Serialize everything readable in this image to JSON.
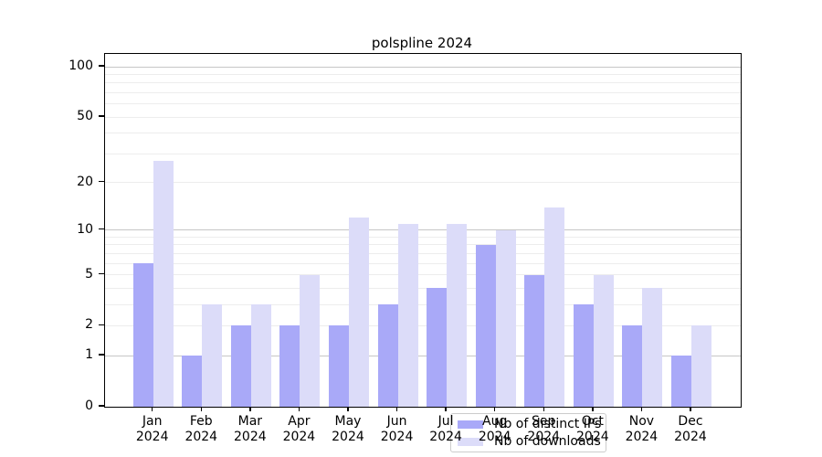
{
  "title": "polspline 2024",
  "colors": {
    "ips_bar": "#a9a9f8",
    "downloads_bar": "#dcdcf9",
    "grid_minor": "#ededed",
    "grid_major": "#c6c6c6",
    "axis": "#000000",
    "background": "#ffffff"
  },
  "legend": {
    "items": [
      {
        "label": "Nb of distinct IPs",
        "color_key": "ips_bar"
      },
      {
        "label": "Nb of downloads",
        "color_key": "downloads_bar"
      }
    ]
  },
  "y_axis": {
    "scale": "log1p",
    "tick_values": [
      0,
      1,
      2,
      5,
      10,
      20,
      50,
      100
    ],
    "tick_labels": [
      "0",
      "1",
      "2",
      "5",
      "10",
      "20",
      "50",
      "100"
    ],
    "major_gridlines": [
      1,
      10,
      100
    ],
    "minor_gridlines": [
      2,
      3,
      4,
      5,
      6,
      7,
      8,
      9,
      20,
      30,
      40,
      50,
      60,
      70,
      80,
      90
    ]
  },
  "x_axis": {
    "labels": [
      [
        "Jan",
        "2024"
      ],
      [
        "Feb",
        "2024"
      ],
      [
        "Mar",
        "2024"
      ],
      [
        "Apr",
        "2024"
      ],
      [
        "May",
        "2024"
      ],
      [
        "Jun",
        "2024"
      ],
      [
        "Jul",
        "2024"
      ],
      [
        "Aug",
        "2024"
      ],
      [
        "Sep",
        "2024"
      ],
      [
        "Oct",
        "2024"
      ],
      [
        "Nov",
        "2024"
      ],
      [
        "Dec",
        "2024"
      ]
    ]
  },
  "chart_data": {
    "type": "bar",
    "title": "polspline 2024",
    "categories": [
      "Jan 2024",
      "Feb 2024",
      "Mar 2024",
      "Apr 2024",
      "May 2024",
      "Jun 2024",
      "Jul 2024",
      "Aug 2024",
      "Sep 2024",
      "Oct 2024",
      "Nov 2024",
      "Dec 2024"
    ],
    "series": [
      {
        "name": "Nb of distinct IPs",
        "color_key": "ips_bar",
        "values": [
          6,
          1,
          2,
          2,
          2,
          3,
          4,
          8,
          5,
          3,
          2,
          1
        ]
      },
      {
        "name": "Nb of downloads",
        "color_key": "downloads_bar",
        "values": [
          27,
          3,
          3,
          5,
          12,
          11,
          11,
          10,
          14,
          5,
          4,
          2
        ]
      }
    ],
    "xlabel": "",
    "ylabel": "",
    "ylim": [
      0,
      100
    ],
    "yscale": "log1p",
    "yticks": [
      0,
      1,
      2,
      5,
      10,
      20,
      50,
      100
    ],
    "grid": true,
    "legend_position": "lower center"
  }
}
